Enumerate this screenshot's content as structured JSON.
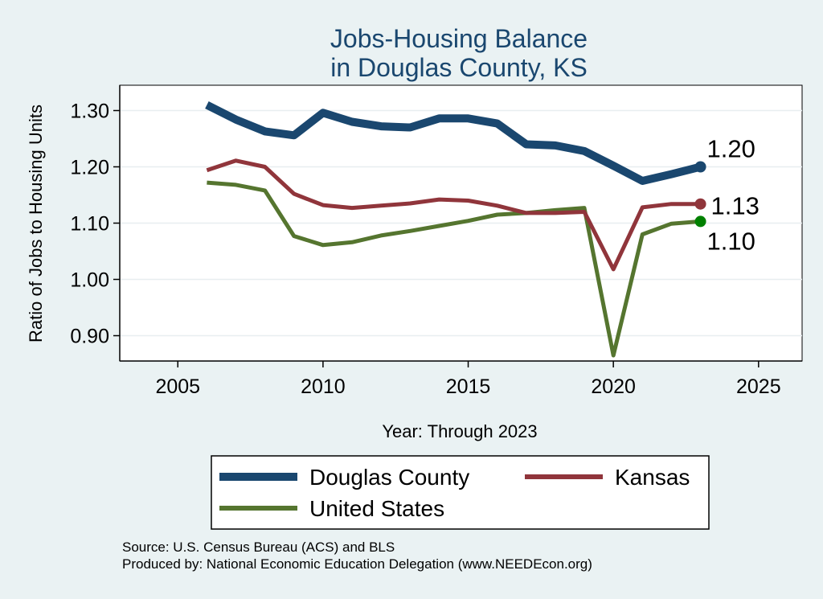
{
  "chart_data": {
    "type": "line",
    "title": [
      "Jobs-Housing Balance",
      "in Douglas County, KS"
    ],
    "xlabel": "Year: Through 2023",
    "ylabel": "Ratio of Jobs to Housing Units",
    "xlim": [
      2003,
      2026.5
    ],
    "ylim": [
      0.855,
      1.345
    ],
    "xticks": [
      2005,
      2010,
      2015,
      2020,
      2025
    ],
    "yticks": [
      0.9,
      1.0,
      1.1,
      1.2,
      1.3
    ],
    "ytick_labels": [
      "0.90",
      "1.00",
      "1.10",
      "1.20",
      "1.30"
    ],
    "grid": true,
    "x": [
      2006,
      2007,
      2008,
      2009,
      2010,
      2011,
      2012,
      2013,
      2014,
      2015,
      2016,
      2017,
      2018,
      2019,
      2020,
      2021,
      2022,
      2023
    ],
    "series": [
      {
        "name": "Douglas County",
        "color": "#1a476f",
        "values": [
          1.31,
          1.284,
          1.263,
          1.256,
          1.296,
          1.28,
          1.272,
          1.27,
          1.286,
          1.286,
          1.277,
          1.24,
          1.238,
          1.228,
          1.202,
          1.175,
          1.187,
          1.2
        ],
        "end_label": "1.20",
        "end_marker_color": "#1a476f"
      },
      {
        "name": "Kansas",
        "color": "#90353b",
        "values": [
          1.194,
          1.211,
          1.2,
          1.152,
          1.132,
          1.127,
          1.131,
          1.135,
          1.142,
          1.14,
          1.131,
          1.118,
          1.118,
          1.12,
          1.018,
          1.128,
          1.134,
          1.134
        ],
        "end_label": "1.13",
        "end_marker_color": "#90353b"
      },
      {
        "name": "United States",
        "color": "#55752f",
        "values": [
          1.172,
          1.168,
          1.158,
          1.077,
          1.061,
          1.066,
          1.078,
          1.086,
          1.095,
          1.104,
          1.115,
          1.118,
          1.123,
          1.127,
          0.865,
          1.08,
          1.099,
          1.103
        ],
        "end_label": "1.10",
        "end_marker_color": "#008000"
      }
    ],
    "legend": {
      "placement": "bottom",
      "entries": [
        "Douglas County",
        "Kansas",
        "United States"
      ]
    },
    "notes": [
      "Source: U.S. Census Bureau (ACS) and BLS",
      "Produced by: National Economic Education Delegation (www.NEEDEcon.org)"
    ]
  }
}
